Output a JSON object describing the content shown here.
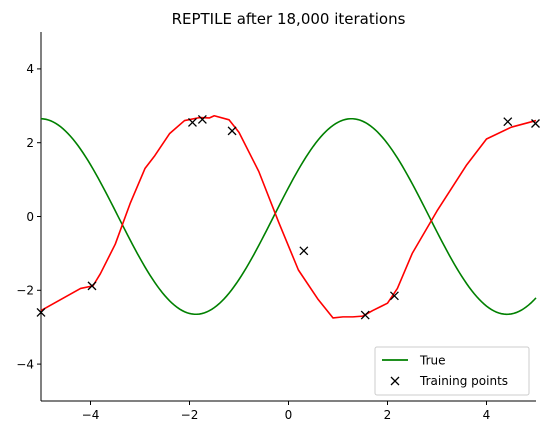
{
  "chart_data": {
    "type": "line",
    "title": "REPTILE after 18,000 iterations",
    "xlabel": "",
    "ylabel": "",
    "xlim": [
      -5,
      5
    ],
    "ylim": [
      -5,
      5
    ],
    "x_ticks": [
      -4,
      -2,
      0,
      2,
      4
    ],
    "y_ticks": [
      -4,
      -2,
      0,
      2,
      4
    ],
    "x_tick_labels": [
      "−4",
      "−2",
      "0",
      "2",
      "4"
    ],
    "y_tick_labels": [
      "−4",
      "−2",
      "0",
      "2",
      "4"
    ],
    "grid": false,
    "legend_position": "lower-right",
    "true_curve": {
      "name": "True",
      "color": "#008000",
      "amplitude": 2.65,
      "phase": 0.3
    },
    "training_points": {
      "name": "Training points",
      "marker": "x",
      "color": "#000000",
      "x": [
        -5.0,
        -3.97,
        -1.94,
        -1.74,
        -1.14,
        0.31,
        1.55,
        2.14,
        4.43,
        4.99
      ],
      "y": [
        -2.6,
        -1.88,
        2.55,
        2.63,
        2.32,
        -0.93,
        -2.67,
        -2.15,
        2.57,
        2.52
      ]
    },
    "prediction": {
      "color": "#ff0000",
      "x": [
        -5.0,
        -4.2,
        -3.95,
        -3.8,
        -3.5,
        -3.2,
        -2.9,
        -2.7,
        -2.4,
        -2.1,
        -1.8,
        -1.6,
        -1.5,
        -1.2,
        -1.0,
        -0.6,
        -0.2,
        0.2,
        0.6,
        0.9,
        1.1,
        1.3,
        1.5,
        1.7,
        2.0,
        2.2,
        2.5,
        3.0,
        3.6,
        4.0,
        4.5,
        5.0
      ],
      "y": [
        -2.55,
        -1.95,
        -1.88,
        -1.55,
        -0.75,
        0.35,
        1.3,
        1.65,
        2.25,
        2.6,
        2.68,
        2.67,
        2.73,
        2.62,
        2.28,
        1.22,
        -0.15,
        -1.45,
        -2.25,
        -2.75,
        -2.72,
        -2.72,
        -2.7,
        -2.55,
        -2.35,
        -1.95,
        -1.0,
        0.15,
        1.4,
        2.1,
        2.42,
        2.6
      ]
    }
  }
}
